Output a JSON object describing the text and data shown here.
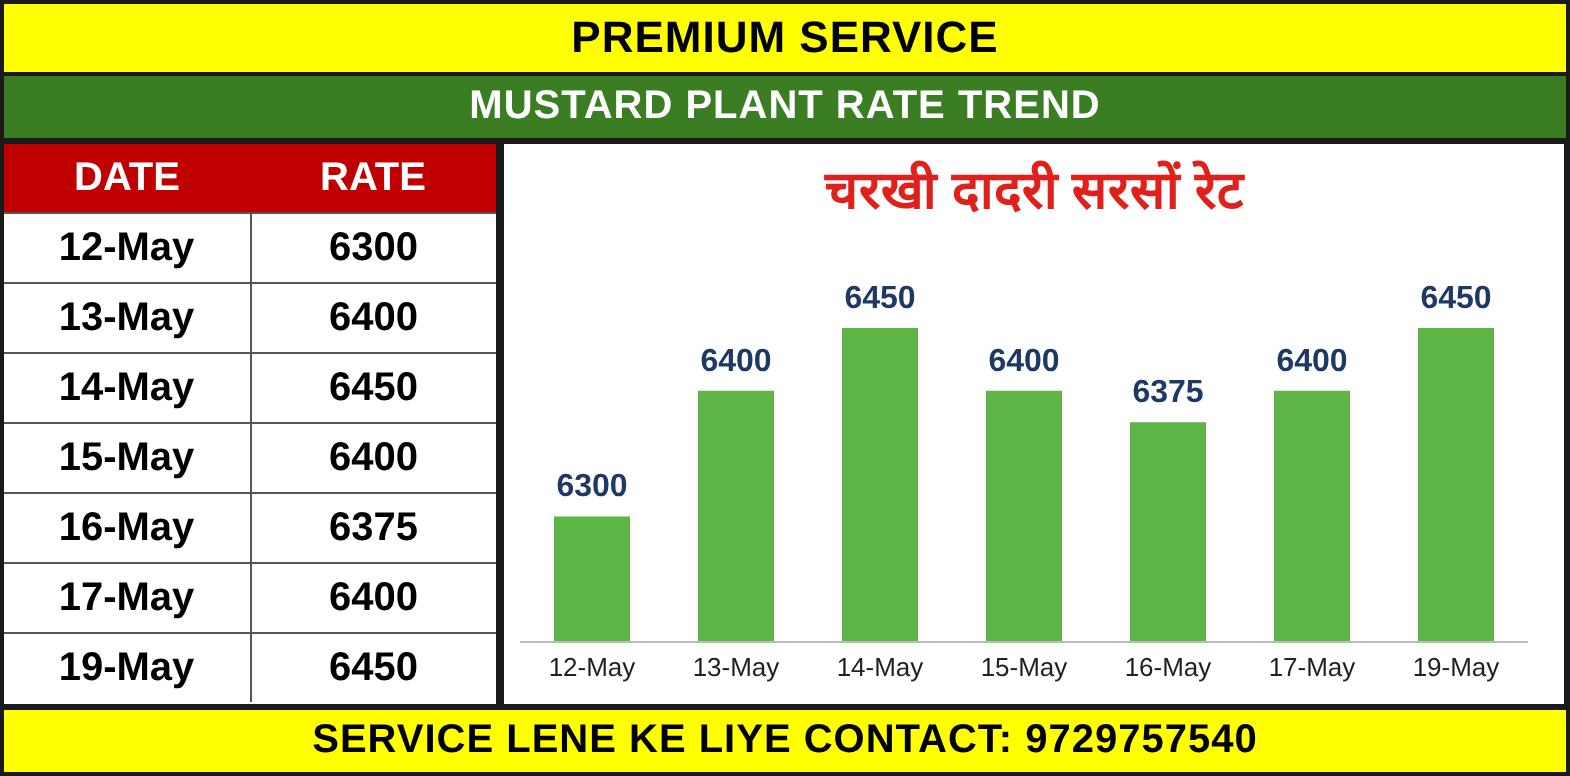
{
  "chart_data": [
    {
      "type": "bar",
      "title": "चरखी दादरी सरसों रेट",
      "subtitle": "MUSTARD PLANT RATE TREND",
      "annotations": [
        "PREMIUM SERVICE",
        "SERVICE LENE KE LIYE CONTACT: 9729757540"
      ],
      "categories": [
        "12-May",
        "13-May",
        "14-May",
        "15-May",
        "16-May",
        "17-May",
        "19-May"
      ],
      "values": [
        6300,
        6400,
        6450,
        6400,
        6375,
        6400,
        6450
      ],
      "color": "#5cb545",
      "ylim": [
        6200,
        6450
      ],
      "data_labels": true
    },
    {
      "type": "other",
      "xlabel": "DATE",
      "ylabel": "RATE",
      "categories": [
        "12-May",
        "13-May",
        "14-May",
        "15-May",
        "16-May",
        "17-May",
        "19-May"
      ],
      "values": [
        6300,
        6400,
        6450,
        6400,
        6375,
        6400,
        6450
      ],
      "data_labels": true
    }
  ]
}
